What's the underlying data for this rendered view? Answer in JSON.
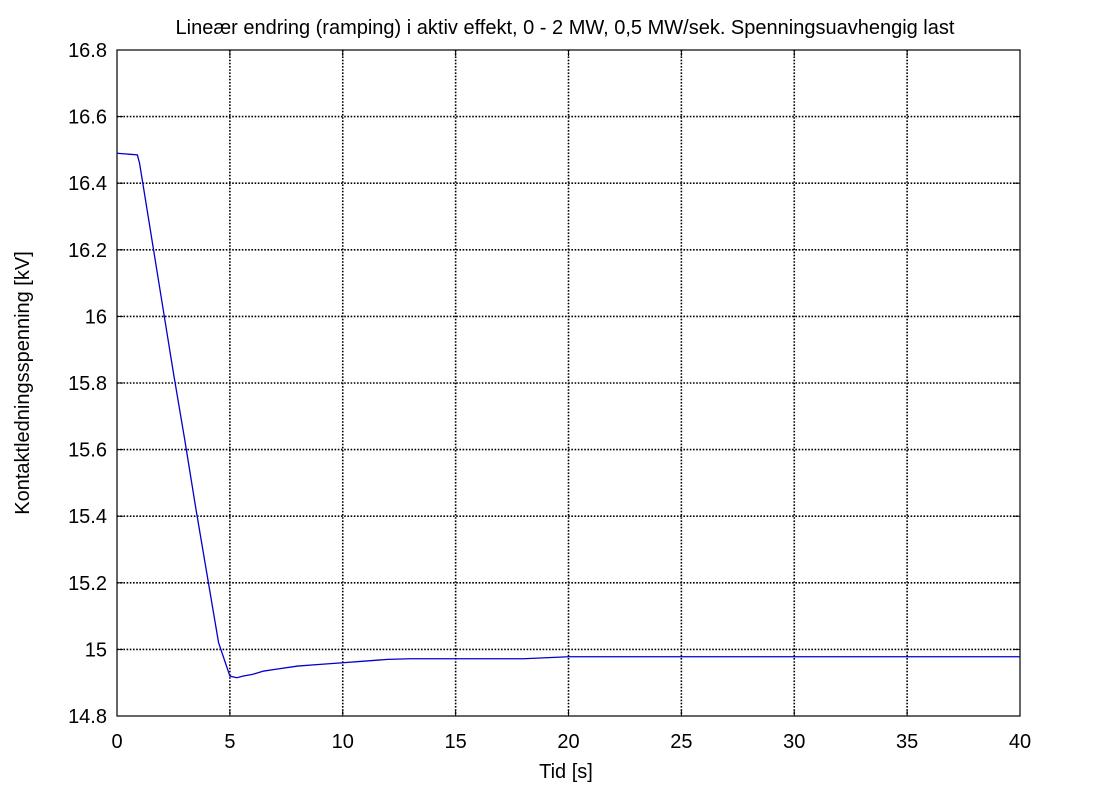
{
  "chart_data": {
    "type": "line",
    "title": "Lineær endring (ramping) i aktiv effekt, 0 - 2 MW, 0,5 MW/sek. Spenningsuavhengig last",
    "xlabel": "Tid [s]",
    "ylabel": "Kontaktledningsspenning [kV]",
    "xlim": [
      0,
      40
    ],
    "ylim": [
      14.8,
      16.8
    ],
    "x_ticks": [
      0,
      5,
      10,
      15,
      20,
      25,
      30,
      35,
      40
    ],
    "y_ticks": [
      14.8,
      15,
      15.2,
      15.4,
      15.6,
      15.8,
      16,
      16.2,
      16.4,
      16.6,
      16.8
    ],
    "x_tick_labels": [
      "0",
      "5",
      "10",
      "15",
      "20",
      "25",
      "30",
      "35",
      "40"
    ],
    "y_tick_labels": [
      "14.8",
      "15",
      "15.2",
      "15.4",
      "15.6",
      "15.8",
      "16",
      "16.2",
      "16.4",
      "16.6",
      "16.8"
    ],
    "grid": true,
    "line_color": "#0000cc",
    "series": [
      {
        "x": [
          0,
          0.9,
          1.0,
          1.5,
          2.0,
          2.5,
          3.0,
          3.5,
          4.0,
          4.5,
          5.0,
          5.3,
          5.6,
          6.0,
          6.5,
          7.0,
          8.0,
          9.0,
          10.0,
          11.0,
          12.0,
          13.0,
          15.0,
          18.0,
          19.0,
          20.0,
          25.0,
          30.0,
          40.0
        ],
        "y": [
          16.49,
          16.485,
          16.46,
          16.25,
          16.04,
          15.83,
          15.63,
          15.42,
          15.22,
          15.02,
          14.92,
          14.915,
          14.92,
          14.925,
          14.935,
          14.94,
          14.95,
          14.955,
          14.96,
          14.965,
          14.97,
          14.972,
          14.972,
          14.972,
          14.975,
          14.978,
          14.978,
          14.978,
          14.978
        ]
      }
    ]
  }
}
